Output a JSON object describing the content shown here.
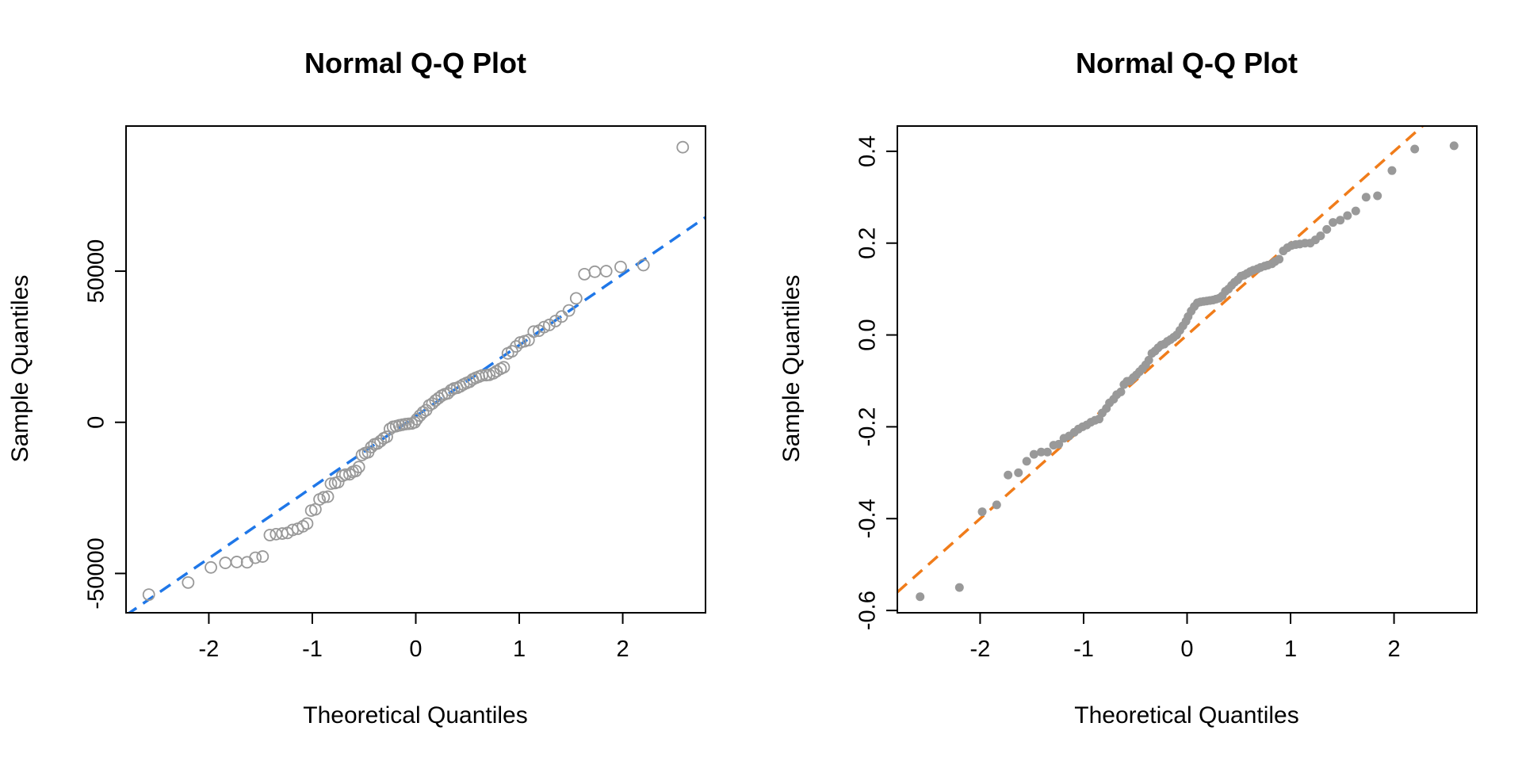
{
  "chart_data": [
    {
      "type": "scatter",
      "title": "Normal Q-Q Plot",
      "xlabel": "Theoretical Quantiles",
      "ylabel": "Sample Quantiles",
      "xlim": [
        -2.8,
        2.8
      ],
      "ylim": [
        -63000,
        98000
      ],
      "x_ticks": [
        -2,
        -1,
        0,
        1,
        2
      ],
      "x_tick_labels": [
        "-2",
        "-1",
        "0",
        "1",
        "2"
      ],
      "y_ticks": [
        -50000,
        0,
        50000
      ],
      "y_tick_labels": [
        "-50000",
        "0",
        "50000"
      ],
      "grid": false,
      "legend": "none",
      "marker": "open-circle",
      "marker_color": "#999999",
      "reference_line": {
        "style": "dashed",
        "color": "#1f77e8",
        "intercept": 2000,
        "slope": 23500
      },
      "points": [
        [
          -2.58,
          -57000
        ],
        [
          -2.2,
          -53000
        ],
        [
          -1.98,
          -48000
        ],
        [
          -1.84,
          -46500
        ],
        [
          -1.73,
          -46200
        ],
        [
          -1.63,
          -46300
        ],
        [
          -1.55,
          -44800
        ],
        [
          -1.48,
          -44400
        ],
        [
          -1.41,
          -37300
        ],
        [
          -1.35,
          -37000
        ],
        [
          -1.29,
          -36800
        ],
        [
          -1.24,
          -36600
        ],
        [
          -1.19,
          -35600
        ],
        [
          -1.14,
          -35200
        ],
        [
          -1.09,
          -34400
        ],
        [
          -1.05,
          -33500
        ],
        [
          -1.01,
          -29200
        ],
        [
          -0.97,
          -28800
        ],
        [
          -0.93,
          -25500
        ],
        [
          -0.89,
          -24800
        ],
        [
          -0.85,
          -24600
        ],
        [
          -0.82,
          -20300
        ],
        [
          -0.78,
          -20100
        ],
        [
          -0.75,
          -19800
        ],
        [
          -0.71,
          -17700
        ],
        [
          -0.68,
          -17300
        ],
        [
          -0.64,
          -17200
        ],
        [
          -0.61,
          -16400
        ],
        [
          -0.58,
          -16100
        ],
        [
          -0.55,
          -14800
        ],
        [
          -0.52,
          -10800
        ],
        [
          -0.49,
          -10200
        ],
        [
          -0.46,
          -9900
        ],
        [
          -0.43,
          -8200
        ],
        [
          -0.4,
          -7300
        ],
        [
          -0.37,
          -7000
        ],
        [
          -0.34,
          -6200
        ],
        [
          -0.31,
          -5300
        ],
        [
          -0.28,
          -4800
        ],
        [
          -0.25,
          -2200
        ],
        [
          -0.22,
          -1500
        ],
        [
          -0.19,
          -1300
        ],
        [
          -0.16,
          -1000
        ],
        [
          -0.13,
          -800
        ],
        [
          -0.1,
          -600
        ],
        [
          -0.07,
          -500
        ],
        [
          -0.04,
          -400
        ],
        [
          -0.01,
          0
        ],
        [
          0.01,
          1000
        ],
        [
          0.04,
          2200
        ],
        [
          0.07,
          3300
        ],
        [
          0.1,
          4000
        ],
        [
          0.13,
          5600
        ],
        [
          0.16,
          6200
        ],
        [
          0.19,
          7200
        ],
        [
          0.22,
          8000
        ],
        [
          0.25,
          8800
        ],
        [
          0.28,
          9300
        ],
        [
          0.31,
          9600
        ],
        [
          0.34,
          10600
        ],
        [
          0.37,
          11200
        ],
        [
          0.4,
          11400
        ],
        [
          0.43,
          11900
        ],
        [
          0.46,
          12500
        ],
        [
          0.49,
          13000
        ],
        [
          0.52,
          13400
        ],
        [
          0.55,
          14200
        ],
        [
          0.58,
          14700
        ],
        [
          0.61,
          15100
        ],
        [
          0.64,
          15500
        ],
        [
          0.68,
          15600
        ],
        [
          0.71,
          15700
        ],
        [
          0.75,
          16200
        ],
        [
          0.78,
          16900
        ],
        [
          0.82,
          17700
        ],
        [
          0.85,
          18200
        ],
        [
          0.89,
          22800
        ],
        [
          0.93,
          23500
        ],
        [
          0.97,
          25100
        ],
        [
          1.01,
          26400
        ],
        [
          1.05,
          26800
        ],
        [
          1.09,
          27200
        ],
        [
          1.14,
          30000
        ],
        [
          1.19,
          30300
        ],
        [
          1.24,
          31500
        ],
        [
          1.29,
          32200
        ],
        [
          1.35,
          33500
        ],
        [
          1.41,
          35000
        ],
        [
          1.48,
          37000
        ],
        [
          1.55,
          41000
        ],
        [
          1.63,
          49000
        ],
        [
          1.73,
          49800
        ],
        [
          1.84,
          50000
        ],
        [
          1.98,
          51400
        ],
        [
          2.2,
          52000
        ],
        [
          2.58,
          91000
        ]
      ]
    },
    {
      "type": "scatter",
      "title": "Normal Q-Q Plot",
      "xlabel": "Theoretical Quantiles",
      "ylabel": "Sample Quantiles",
      "xlim": [
        -2.8,
        2.8
      ],
      "ylim": [
        -0.605,
        0.455
      ],
      "x_ticks": [
        -2,
        -1,
        0,
        1,
        2
      ],
      "x_tick_labels": [
        "-2",
        "-1",
        "0",
        "1",
        "2"
      ],
      "y_ticks": [
        -0.6,
        -0.4,
        -0.2,
        0.0,
        0.2,
        0.4
      ],
      "y_tick_labels": [
        "-0.6",
        "-0.4",
        "-0.2",
        "0.0",
        "0.2",
        "0.4"
      ],
      "grid": false,
      "legend": "none",
      "marker": "filled-circle",
      "marker_color": "#999999",
      "reference_line": {
        "style": "dashed",
        "color": "#f07c1a",
        "intercept": 0.0,
        "slope": 0.2
      },
      "points": [
        [
          -2.58,
          -0.57
        ],
        [
          -2.2,
          -0.55
        ],
        [
          -1.98,
          -0.385
        ],
        [
          -1.84,
          -0.37
        ],
        [
          -1.73,
          -0.305
        ],
        [
          -1.63,
          -0.3
        ],
        [
          -1.55,
          -0.275
        ],
        [
          -1.48,
          -0.26
        ],
        [
          -1.41,
          -0.255
        ],
        [
          -1.35,
          -0.255
        ],
        [
          -1.29,
          -0.24
        ],
        [
          -1.24,
          -0.238
        ],
        [
          -1.19,
          -0.225
        ],
        [
          -1.14,
          -0.22
        ],
        [
          -1.09,
          -0.212
        ],
        [
          -1.05,
          -0.205
        ],
        [
          -1.01,
          -0.2
        ],
        [
          -0.97,
          -0.196
        ],
        [
          -0.93,
          -0.19
        ],
        [
          -0.89,
          -0.186
        ],
        [
          -0.85,
          -0.183
        ],
        [
          -0.82,
          -0.17
        ],
        [
          -0.78,
          -0.16
        ],
        [
          -0.75,
          -0.148
        ],
        [
          -0.71,
          -0.14
        ],
        [
          -0.68,
          -0.13
        ],
        [
          -0.64,
          -0.124
        ],
        [
          -0.61,
          -0.108
        ],
        [
          -0.58,
          -0.101
        ],
        [
          -0.55,
          -0.1
        ],
        [
          -0.52,
          -0.093
        ],
        [
          -0.49,
          -0.087
        ],
        [
          -0.46,
          -0.08
        ],
        [
          -0.43,
          -0.073
        ],
        [
          -0.4,
          -0.065
        ],
        [
          -0.37,
          -0.055
        ],
        [
          -0.34,
          -0.04
        ],
        [
          -0.31,
          -0.035
        ],
        [
          -0.28,
          -0.028
        ],
        [
          -0.25,
          -0.022
        ],
        [
          -0.22,
          -0.02
        ],
        [
          -0.19,
          -0.014
        ],
        [
          -0.16,
          -0.01
        ],
        [
          -0.13,
          -0.005
        ],
        [
          -0.1,
          0.0
        ],
        [
          -0.07,
          0.01
        ],
        [
          -0.04,
          0.02
        ],
        [
          -0.01,
          0.03
        ],
        [
          0.01,
          0.04
        ],
        [
          0.04,
          0.052
        ],
        [
          0.07,
          0.062
        ],
        [
          0.1,
          0.07
        ],
        [
          0.13,
          0.072
        ],
        [
          0.16,
          0.073
        ],
        [
          0.19,
          0.074
        ],
        [
          0.22,
          0.075
        ],
        [
          0.25,
          0.076
        ],
        [
          0.28,
          0.078
        ],
        [
          0.31,
          0.08
        ],
        [
          0.34,
          0.085
        ],
        [
          0.37,
          0.095
        ],
        [
          0.4,
          0.1
        ],
        [
          0.43,
          0.108
        ],
        [
          0.46,
          0.115
        ],
        [
          0.49,
          0.12
        ],
        [
          0.52,
          0.128
        ],
        [
          0.55,
          0.13
        ],
        [
          0.58,
          0.134
        ],
        [
          0.61,
          0.138
        ],
        [
          0.64,
          0.141
        ],
        [
          0.68,
          0.144
        ],
        [
          0.71,
          0.147
        ],
        [
          0.75,
          0.15
        ],
        [
          0.78,
          0.152
        ],
        [
          0.82,
          0.155
        ],
        [
          0.85,
          0.16
        ],
        [
          0.89,
          0.165
        ],
        [
          0.93,
          0.183
        ],
        [
          0.97,
          0.19
        ],
        [
          1.01,
          0.195
        ],
        [
          1.05,
          0.197
        ],
        [
          1.09,
          0.198
        ],
        [
          1.14,
          0.2
        ],
        [
          1.19,
          0.2
        ],
        [
          1.24,
          0.207
        ],
        [
          1.29,
          0.216
        ],
        [
          1.35,
          0.23
        ],
        [
          1.41,
          0.245
        ],
        [
          1.48,
          0.25
        ],
        [
          1.55,
          0.26
        ],
        [
          1.63,
          0.27
        ],
        [
          1.73,
          0.3
        ],
        [
          1.84,
          0.303
        ],
        [
          1.98,
          0.358
        ],
        [
          2.2,
          0.405
        ],
        [
          2.58,
          0.412
        ]
      ]
    }
  ]
}
